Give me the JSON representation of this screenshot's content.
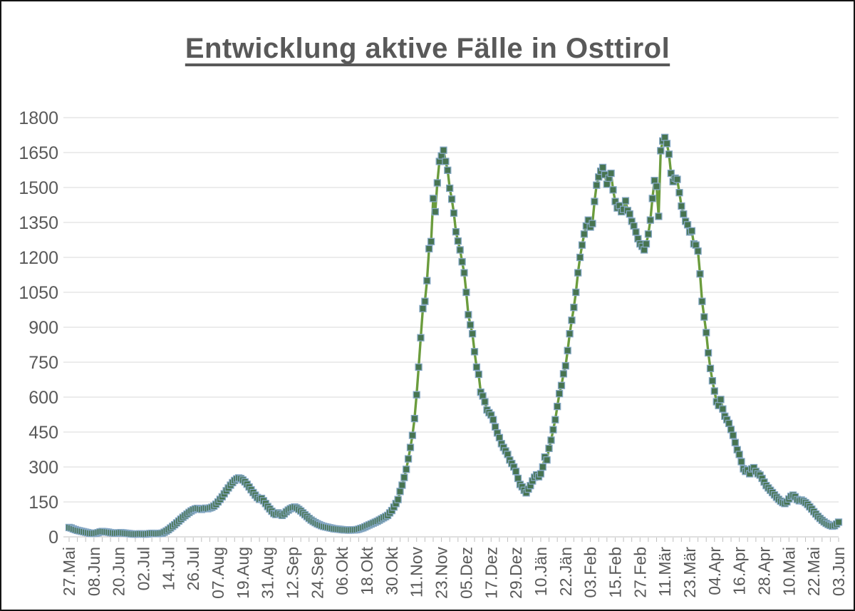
{
  "chart_data": {
    "type": "line",
    "title": "Entwicklung aktive Fälle in Osttirol",
    "xlabel": "",
    "ylabel": "",
    "ylim": [
      0,
      1800
    ],
    "y_ticks": [
      0,
      150,
      300,
      450,
      600,
      750,
      900,
      1050,
      1200,
      1350,
      1500,
      1650,
      1800
    ],
    "x_tick_labels": [
      "27.Mai",
      "08.Jun",
      "20.Jun",
      "02.Jul",
      "14.Jul",
      "26.Jul",
      "07.Aug",
      "19.Aug",
      "31.Aug",
      "12.Sep",
      "24.Sep",
      "06.Okt",
      "18.Okt",
      "30.Okt",
      "11.Nov",
      "23.Nov",
      "05.Dez",
      "17.Dez",
      "29.Dez",
      "10.Jän",
      "22.Jän",
      "03.Feb",
      "15.Feb",
      "27.Feb",
      "11.Mär",
      "23.Mär",
      "04.Apr",
      "16.Apr",
      "28.Apr",
      "10.Mai",
      "22.Mai",
      "03.Jun"
    ],
    "x_tick_interval_days": 12,
    "x_minor_tick_interval_days": 4,
    "grid": true,
    "legend": "none",
    "series_name": "aktive Fälle",
    "values": [
      40,
      38,
      34,
      31,
      28,
      26,
      24,
      22,
      20,
      18,
      16,
      15,
      15,
      16,
      18,
      21,
      23,
      22,
      21,
      20,
      18,
      17,
      16,
      16,
      17,
      18,
      17,
      16,
      15,
      14,
      13,
      12,
      12,
      12,
      13,
      13,
      12,
      12,
      13,
      14,
      15,
      15,
      14,
      14,
      15,
      16,
      20,
      25,
      31,
      38,
      45,
      52,
      60,
      68,
      76,
      84,
      91,
      98,
      105,
      111,
      116,
      120,
      122,
      120,
      118,
      121,
      123,
      121,
      124,
      127,
      132,
      140,
      150,
      161,
      172,
      185,
      198,
      210,
      222,
      233,
      242,
      249,
      253,
      250,
      244,
      236,
      226,
      214,
      202,
      190,
      179,
      169,
      161,
      165,
      155,
      143,
      130,
      120,
      110,
      100,
      96,
      103,
      98,
      92,
      99,
      108,
      115,
      121,
      125,
      128,
      124,
      118,
      111,
      103,
      95,
      87,
      79,
      72,
      66,
      61,
      56,
      52,
      48,
      45,
      43,
      41,
      39,
      37,
      35,
      34,
      33,
      32,
      31,
      30,
      30,
      29,
      29,
      30,
      30,
      31,
      33,
      36,
      39,
      43,
      47,
      51,
      55,
      59,
      63,
      67,
      72,
      77,
      82,
      87,
      92,
      103,
      113,
      128,
      143,
      160,
      195,
      222,
      255,
      290,
      335,
      384,
      436,
      508,
      610,
      729,
      855,
      980,
      1011,
      1100,
      1237,
      1268,
      1453,
      1396,
      1520,
      1612,
      1636,
      1660,
      1612,
      1574,
      1497,
      1450,
      1390,
      1310,
      1270,
      1232,
      1181,
      1134,
      1050,
      954,
      910,
      872,
      795,
      729,
      698,
      621,
      605,
      580,
      545,
      533,
      523,
      503,
      472,
      446,
      426,
      400,
      384,
      369,
      354,
      330,
      315,
      300,
      281,
      251,
      225,
      215,
      200,
      189,
      205,
      220,
      240,
      256,
      266,
      258,
      271,
      300,
      343,
      330,
      380,
      415,
      460,
      503,
      560,
      615,
      650,
      700,
      734,
      800,
      872,
      930,
      985,
      1050,
      1134,
      1200,
      1253,
      1300,
      1335,
      1360,
      1330,
      1345,
      1440,
      1510,
      1545,
      1570,
      1586,
      1555,
      1514,
      1540,
      1561,
      1490,
      1440,
      1412,
      1422,
      1396,
      1406,
      1443,
      1401,
      1386,
      1355,
      1335,
      1309,
      1280,
      1258,
      1247,
      1232,
      1258,
      1300,
      1360,
      1453,
      1530,
      1505,
      1376,
      1658,
      1700,
      1715,
      1689,
      1643,
      1561,
      1525,
      1540,
      1535,
      1478,
      1420,
      1386,
      1355,
      1340,
      1309,
      1314,
      1258,
      1253,
      1227,
      1129,
      1011,
      944,
      877,
      790,
      723,
      670,
      626,
      580,
      564,
      590,
      549,
      518,
      503,
      487,
      461,
      436,
      405,
      374,
      354,
      323,
      292,
      281,
      287,
      271,
      292,
      297,
      281,
      271,
      265,
      251,
      235,
      220,
      210,
      200,
      190,
      180,
      170,
      161,
      153,
      147,
      143,
      150,
      163,
      174,
      179,
      172,
      160,
      155,
      158,
      153,
      147,
      139,
      129,
      119,
      108,
      98,
      88,
      79,
      71,
      64,
      58,
      53,
      49,
      46,
      48,
      55,
      63
    ],
    "colors": {
      "line": "#6b9c3d",
      "marker_fill": "#477450",
      "marker_border": "#84a7c4",
      "grid": "#d9d9d9",
      "axis": "#bfbfbf",
      "text": "#595959",
      "title": "#595959",
      "background": "#ffffff"
    },
    "marker": {
      "shape": "square",
      "size": 9
    }
  }
}
